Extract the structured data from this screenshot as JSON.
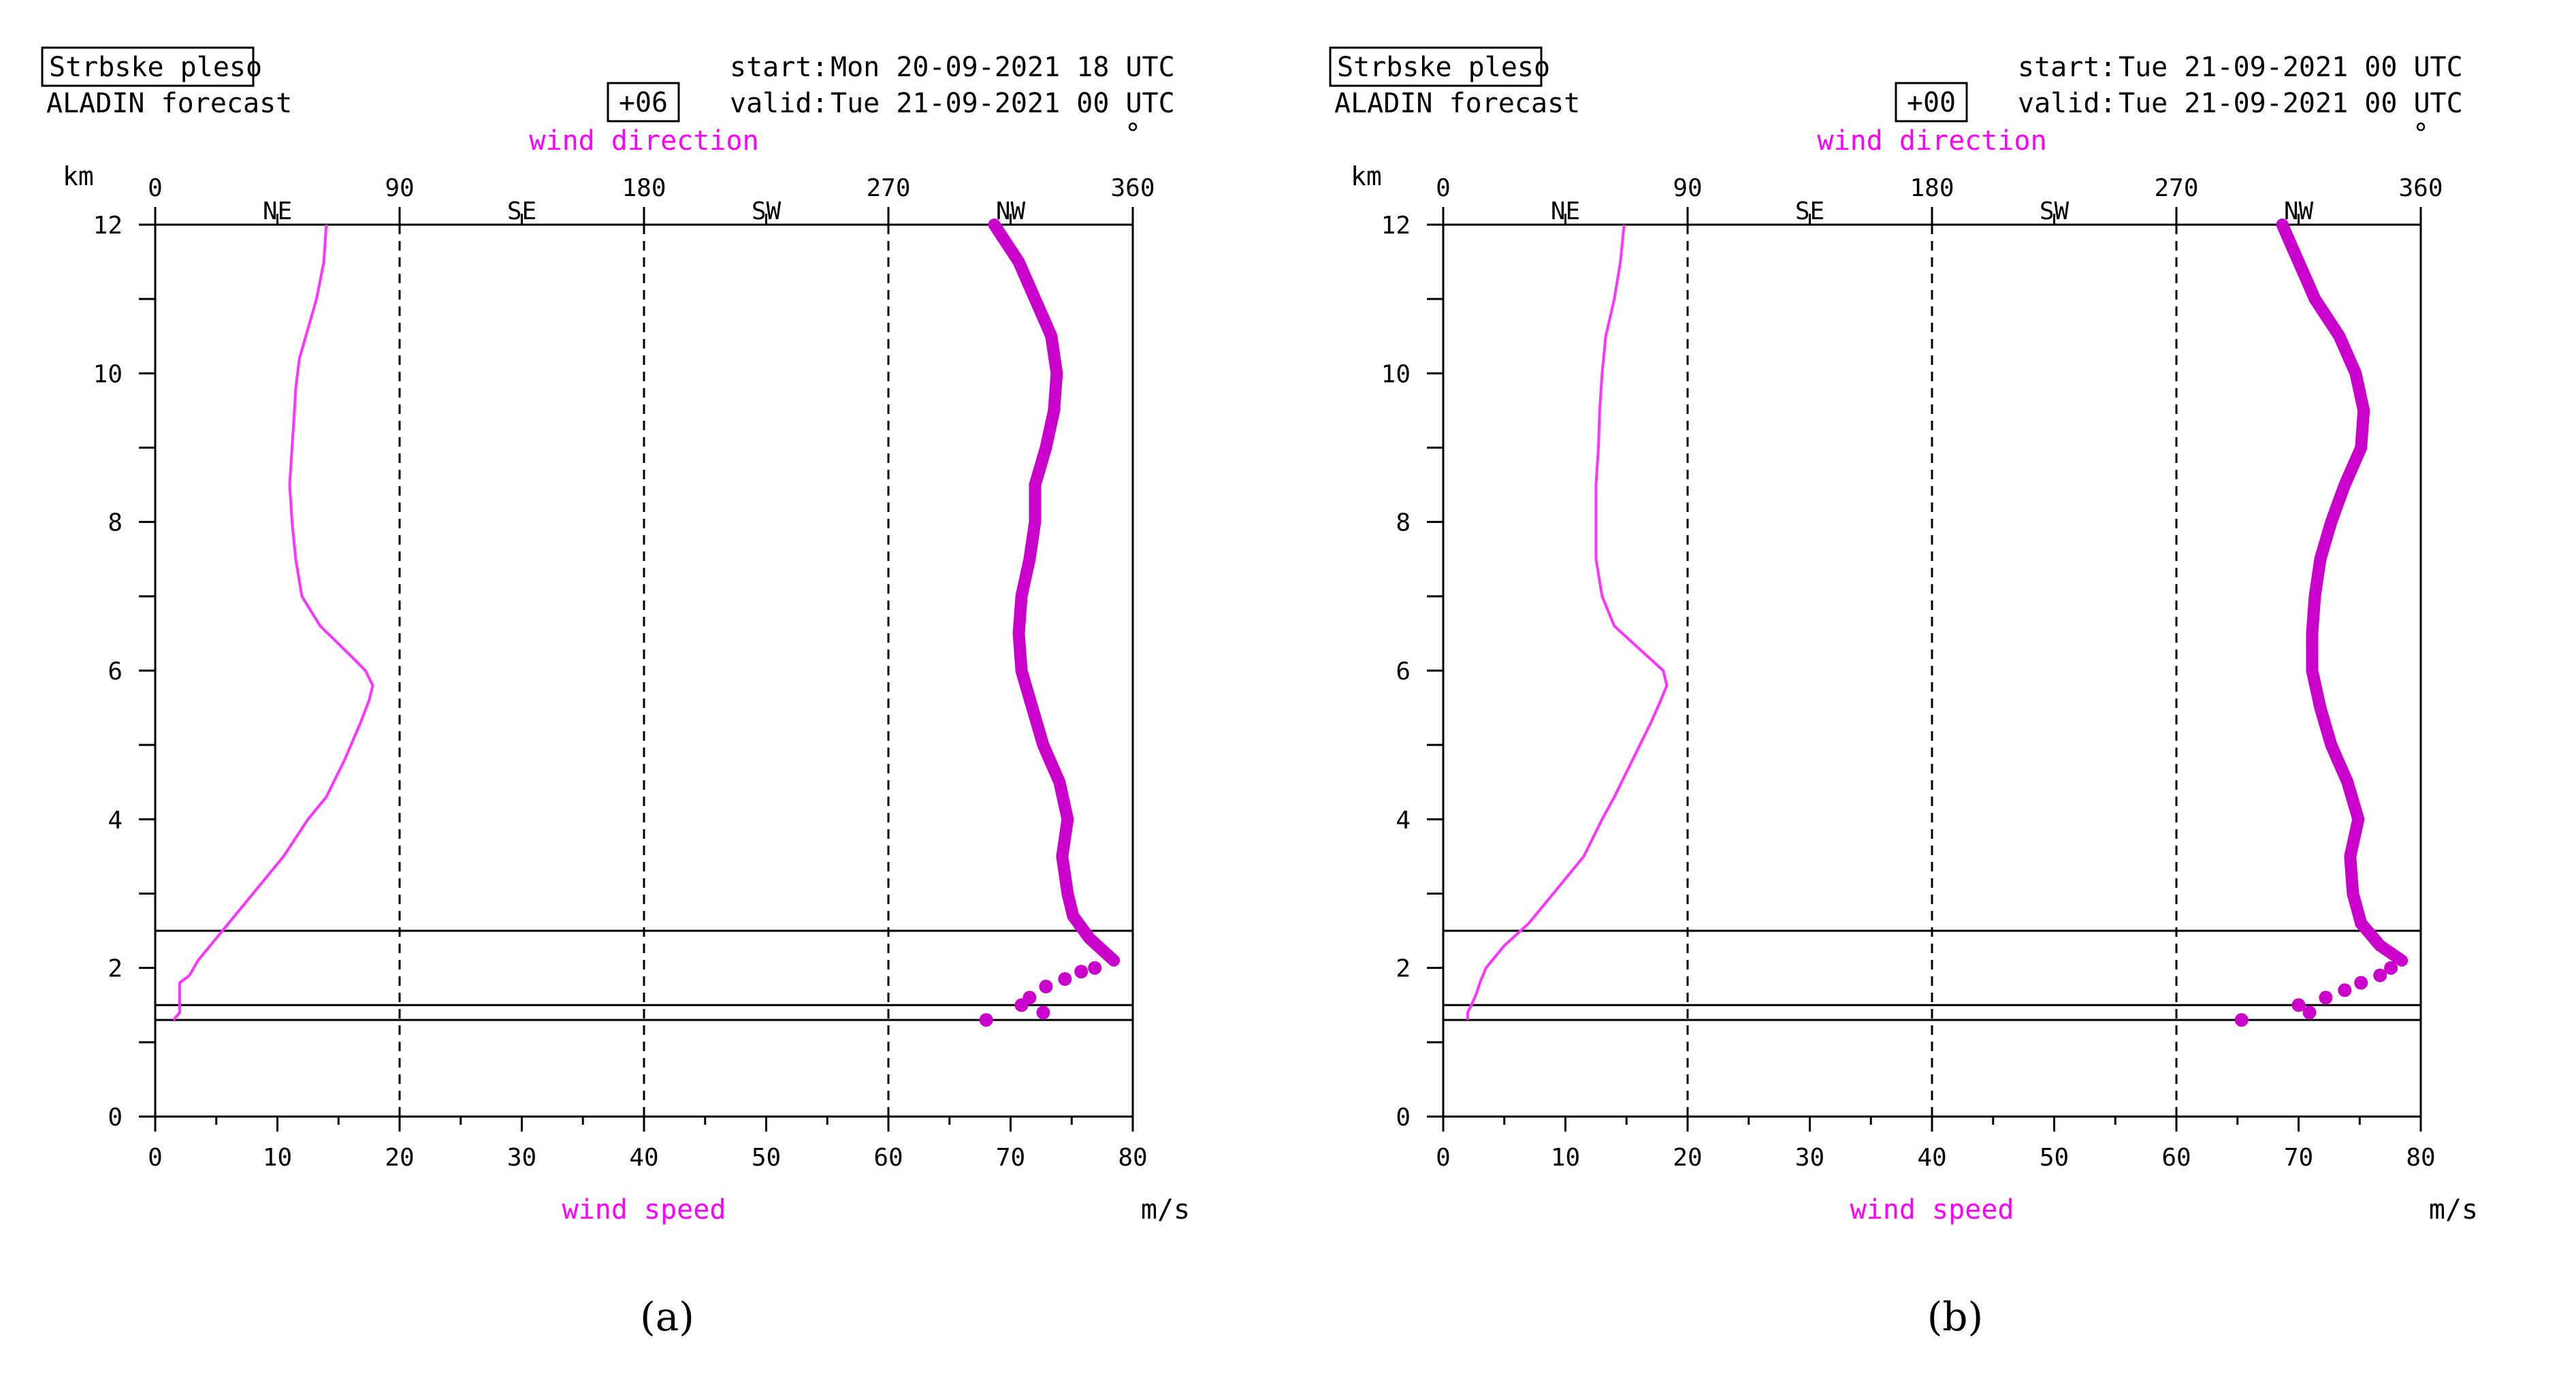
{
  "colors": {
    "speed": "#ff33ff",
    "direction": "#cc00cc",
    "axis": "#000000",
    "magenta_text": "#ff00ff"
  },
  "chart_data": [
    {
      "type": "line",
      "station": "Strbske pleso",
      "model": "ALADIN forecast",
      "lead": "+06",
      "start_label": "start:",
      "start": "Mon 20-09-2021  18 UTC",
      "valid_label": "valid:",
      "valid": "Tue 21-09-2021  00 UTC",
      "degree_mark": "°",
      "top_axis_title": "wind direction",
      "bottom_axis_title": "wind speed",
      "y_unit": "km",
      "x_unit": "m/s",
      "caption": "(a)",
      "y_ticks": [
        "0",
        "2",
        "4",
        "6",
        "8",
        "10",
        "12"
      ],
      "x_ticks": [
        "0",
        "10",
        "20",
        "30",
        "40",
        "50",
        "60",
        "70",
        "80"
      ],
      "dir_ticks": [
        "0",
        "90",
        "180",
        "270",
        "360"
      ],
      "dir_labels": [
        "NE",
        "SE",
        "SW",
        "NW"
      ],
      "ylim": [
        0,
        12
      ],
      "xlim": [
        0,
        80
      ],
      "dirlim": [
        0,
        360
      ],
      "hlines_km": [
        2.5,
        1.5,
        1.3
      ],
      "speed_profile": {
        "height_km": [
          1.3,
          1.4,
          1.5,
          1.8,
          1.9,
          2.1,
          2.3,
          2.6,
          3.0,
          3.5,
          4.0,
          4.3,
          4.8,
          5.3,
          5.6,
          5.8,
          6.0,
          6.2,
          6.6,
          7.0,
          7.5,
          8.0,
          8.5,
          9.0,
          9.5,
          9.8,
          10.2,
          10.6,
          11.0,
          11.5,
          12.0
        ],
        "speed_ms": [
          1.5,
          2,
          2,
          2,
          2.8,
          3.5,
          4.5,
          6,
          8,
          10.5,
          12.5,
          14,
          15.5,
          16.8,
          17.5,
          17.8,
          17.2,
          16,
          13.5,
          12,
          11.5,
          11.2,
          11.0,
          11.2,
          11.4,
          11.5,
          11.8,
          12.5,
          13.2,
          13.8,
          14
        ]
      },
      "direction_profile": {
        "height_km": [
          1.3,
          1.4,
          1.5,
          1.6,
          1.75,
          1.85,
          1.95,
          2.0,
          2.1,
          2.2,
          2.4,
          2.7,
          3.0,
          3.5,
          4.0,
          4.5,
          5.0,
          5.5,
          6.0,
          6.5,
          7.0,
          7.5,
          8.0,
          8.5,
          9.0,
          9.5,
          10.0,
          10.5,
          11.0,
          11.5,
          12.0
        ],
        "direction_deg": [
          306,
          327,
          319,
          322,
          328,
          335,
          341,
          346,
          353,
          350,
          344,
          338,
          336,
          334,
          336,
          333,
          327,
          323,
          319,
          318,
          319,
          322,
          324,
          324,
          328,
          331,
          332,
          330,
          324,
          318,
          309
        ]
      }
    },
    {
      "type": "line",
      "station": "Strbske pleso",
      "model": "ALADIN forecast",
      "lead": "+00",
      "start_label": "start:",
      "start": "Tue 21-09-2021  00 UTC",
      "valid_label": "valid:",
      "valid": "Tue 21-09-2021  00 UTC",
      "degree_mark": "°",
      "top_axis_title": "wind direction",
      "bottom_axis_title": "wind speed",
      "y_unit": "km",
      "x_unit": "m/s",
      "caption": "(b)",
      "y_ticks": [
        "0",
        "2",
        "4",
        "6",
        "8",
        "10",
        "12"
      ],
      "x_ticks": [
        "0",
        "10",
        "20",
        "30",
        "40",
        "50",
        "60",
        "70",
        "80"
      ],
      "dir_ticks": [
        "0",
        "90",
        "180",
        "270",
        "360"
      ],
      "dir_labels": [
        "NE",
        "SE",
        "SW",
        "NW"
      ],
      "ylim": [
        0,
        12
      ],
      "xlim": [
        0,
        80
      ],
      "dirlim": [
        0,
        360
      ],
      "hlines_km": [
        2.5,
        1.5,
        1.3
      ],
      "speed_profile": {
        "height_km": [
          1.3,
          1.4,
          1.5,
          1.65,
          1.8,
          2.0,
          2.3,
          2.6,
          3.0,
          3.5,
          4.0,
          4.3,
          4.8,
          5.3,
          5.6,
          5.8,
          6.0,
          6.3,
          6.6,
          7.0,
          7.5,
          8.0,
          8.5,
          9.0,
          9.5,
          10.0,
          10.5,
          11.0,
          11.5,
          12.0
        ],
        "speed_ms": [
          2,
          2,
          2.3,
          2.7,
          3,
          3.5,
          5,
          7,
          9,
          11.5,
          13,
          14,
          15.5,
          17,
          17.8,
          18.3,
          18,
          16,
          14,
          13,
          12.5,
          12.5,
          12.5,
          12.7,
          12.8,
          13,
          13.3,
          14,
          14.5,
          14.8
        ]
      },
      "direction_profile": {
        "height_km": [
          1.3,
          1.4,
          1.5,
          1.6,
          1.7,
          1.8,
          1.9,
          2.0,
          2.1,
          2.3,
          2.6,
          3.0,
          3.5,
          4.0,
          4.5,
          5.0,
          5.5,
          6.0,
          6.5,
          7.0,
          7.5,
          8.0,
          8.5,
          9.0,
          9.5,
          10.0,
          10.5,
          11.0,
          11.5,
          12.0
        ],
        "direction_deg": [
          294,
          319,
          315,
          325,
          332,
          338,
          345,
          349,
          353,
          345,
          338,
          335,
          334,
          337,
          333,
          327,
          323,
          320,
          320,
          321,
          323,
          327,
          332,
          338,
          339,
          336,
          330,
          321,
          315,
          309
        ]
      }
    }
  ]
}
